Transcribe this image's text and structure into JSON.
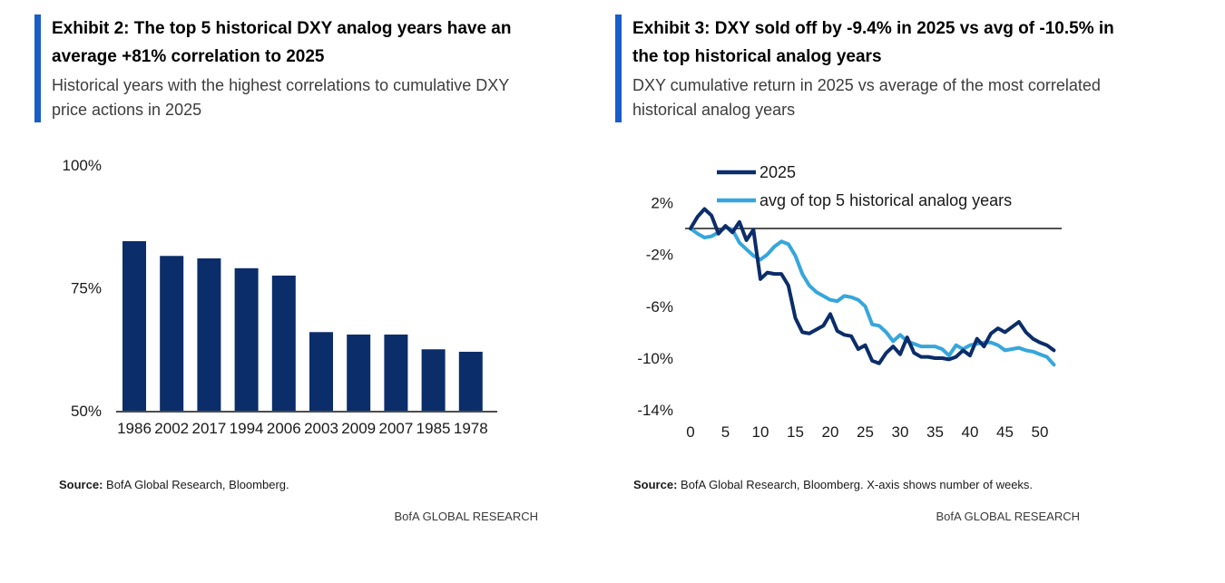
{
  "colors": {
    "accent_blue": "#1a5cc9",
    "navy": "#0b2d6a",
    "light_blue": "#36a6dc",
    "axis_text": "#1a1a1a",
    "baseline_gray": "#4d4d4d",
    "zero_line_black": "#1a1a1a"
  },
  "left_panel": {
    "title": "Exhibit 2: The top 5 historical DXY analog years have an average +81% correlation to 2025",
    "subtitle": "Historical years with the highest correlations to cumulative DXY price actions in 2025",
    "source_label": "Source:",
    "source_text": " BofA Global Research, Bloomberg.",
    "brand": "BofA GLOBAL RESEARCH"
  },
  "right_panel": {
    "title": "Exhibit 3: DXY sold off by -9.4% in 2025 vs avg of -10.5% in the top historical analog years",
    "subtitle": "DXY cumulative return in 2025 vs average of the most correlated historical analog years",
    "source_label": "Source:",
    "source_text": " BofA Global Research, Bloomberg. X-axis shows number of weeks.",
    "brand": "BofA GLOBAL RESEARCH"
  },
  "chart_data": [
    {
      "type": "bar",
      "title": "Top 5 historical DXY analog years correlation to 2025",
      "categories": [
        "1986",
        "2002",
        "2017",
        "1994",
        "2006",
        "2003",
        "2009",
        "2007",
        "1985",
        "1978"
      ],
      "values": [
        84.5,
        81.5,
        81.0,
        79.0,
        77.5,
        66.0,
        65.5,
        65.5,
        62.5,
        62.0
      ],
      "unit": "%",
      "ylim": [
        50,
        100
      ],
      "yticks": [
        100,
        75,
        50
      ],
      "ytick_labels": [
        "100%",
        "75%",
        "50%"
      ],
      "grid": false,
      "bar_color": "#0b2d6a",
      "legend_position": "none"
    },
    {
      "type": "line",
      "title": "DXY cumulative return in 2025 vs average of top 5 historical analog years",
      "x": [
        0,
        1,
        2,
        3,
        4,
        5,
        6,
        7,
        8,
        9,
        10,
        11,
        12,
        13,
        14,
        15,
        16,
        17,
        18,
        19,
        20,
        21,
        22,
        23,
        24,
        25,
        26,
        27,
        28,
        29,
        30,
        31,
        32,
        33,
        34,
        35,
        36,
        37,
        38,
        39,
        40,
        41,
        42,
        43,
        44,
        45,
        46,
        47,
        48,
        49,
        50,
        51,
        52
      ],
      "series": [
        {
          "name": "2025",
          "color": "#0b2d6a",
          "values": [
            0.0,
            0.9,
            1.5,
            1.0,
            -0.4,
            0.2,
            -0.3,
            0.5,
            -0.9,
            -0.1,
            -3.9,
            -3.4,
            -3.5,
            -3.5,
            -4.4,
            -6.9,
            -8.0,
            -8.1,
            -7.8,
            -7.5,
            -6.6,
            -7.9,
            -8.2,
            -8.3,
            -9.3,
            -9.0,
            -10.2,
            -10.4,
            -9.6,
            -9.1,
            -9.7,
            -8.4,
            -9.6,
            -9.9,
            -9.9,
            -10.0,
            -10.0,
            -10.1,
            -9.9,
            -9.4,
            -9.8,
            -8.5,
            -9.1,
            -8.1,
            -7.7,
            -8.0,
            -7.6,
            -7.2,
            -8.0,
            -8.5,
            -8.8,
            -9.0,
            -9.4
          ]
        },
        {
          "name": "avg of top 5 historical analog years",
          "color": "#36a6dc",
          "values": [
            0.0,
            -0.4,
            -0.7,
            -0.6,
            -0.3,
            0.1,
            -0.1,
            -1.1,
            -1.6,
            -2.1,
            -2.4,
            -2.0,
            -1.4,
            -1.0,
            -1.2,
            -2.1,
            -3.5,
            -4.4,
            -4.9,
            -5.2,
            -5.5,
            -5.6,
            -5.2,
            -5.3,
            -5.5,
            -6.0,
            -7.4,
            -7.5,
            -8.0,
            -8.7,
            -8.2,
            -8.7,
            -8.9,
            -9.1,
            -9.1,
            -9.1,
            -9.3,
            -9.8,
            -9.0,
            -9.3,
            -9.0,
            -8.9,
            -8.8,
            -8.8,
            -9.0,
            -9.4,
            -9.3,
            -9.2,
            -9.4,
            -9.5,
            -9.7,
            -9.9,
            -10.5
          ]
        }
      ],
      "ylim": [
        -14,
        2
      ],
      "yticks": [
        2,
        -2,
        -6,
        -10,
        -14
      ],
      "ytick_labels": [
        "2%",
        "-2%",
        "-6%",
        "-10%",
        "-14%"
      ],
      "xticks": [
        0,
        5,
        10,
        15,
        20,
        25,
        30,
        35,
        40,
        45,
        50
      ],
      "zero_line": true,
      "grid": false,
      "legend_position": "top-left",
      "x_axis_note": "number of weeks"
    }
  ]
}
